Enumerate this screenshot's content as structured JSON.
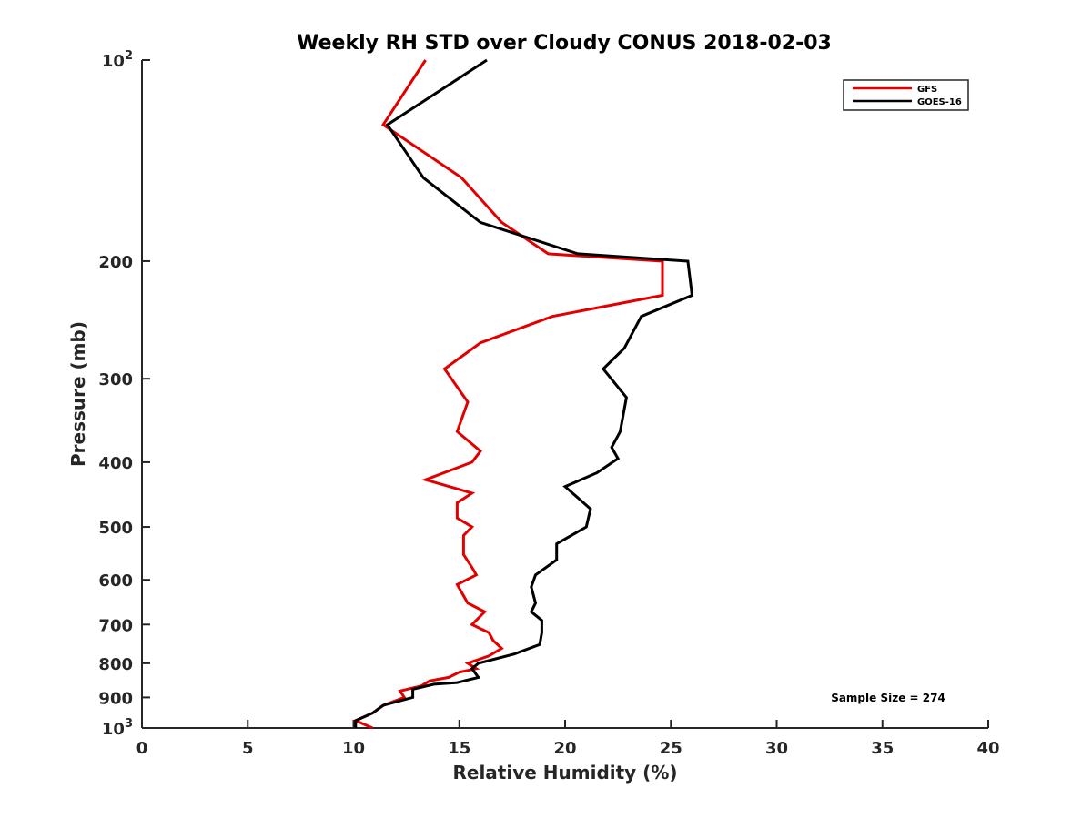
{
  "chart_data": {
    "type": "line",
    "title": "Weekly RH STD over Cloudy CONUS 2018-02-03",
    "xlabel": "Relative Humidity (%)",
    "ylabel": "Pressure (mb)",
    "xlim": [
      0,
      40
    ],
    "ylim": [
      100,
      1000
    ],
    "y_scale": "log",
    "y_reversed": true,
    "grid": false,
    "legend_position": "top-right",
    "x_ticks": [
      "0",
      "5",
      "10",
      "15",
      "20",
      "25",
      "30",
      "35",
      "40"
    ],
    "x_tick_values": [
      0,
      5,
      10,
      15,
      20,
      25,
      30,
      35,
      40
    ],
    "y_ticks": [
      {
        "value": 100,
        "label": "10",
        "sup": "2"
      },
      {
        "value": 200,
        "label": "200",
        "sup": ""
      },
      {
        "value": 300,
        "label": "300",
        "sup": ""
      },
      {
        "value": 400,
        "label": "400",
        "sup": ""
      },
      {
        "value": 500,
        "label": "500",
        "sup": ""
      },
      {
        "value": 600,
        "label": "600",
        "sup": ""
      },
      {
        "value": 700,
        "label": "700",
        "sup": ""
      },
      {
        "value": 800,
        "label": "800",
        "sup": ""
      },
      {
        "value": 900,
        "label": "900",
        "sup": ""
      },
      {
        "value": 1000,
        "label": "10",
        "sup": "3"
      }
    ],
    "annotation": "Sample Size = 274",
    "series": [
      {
        "name": "GFS",
        "color": "#e00000",
        "points": [
          [
            13.4,
            100
          ],
          [
            11.4,
            125
          ],
          [
            15.1,
            150
          ],
          [
            17,
            175
          ],
          [
            19.2,
            195
          ],
          [
            24.6,
            200
          ],
          [
            24.6,
            225
          ],
          [
            19.4,
            242
          ],
          [
            16,
            265
          ],
          [
            14.3,
            290
          ],
          [
            15.4,
            325
          ],
          [
            14.9,
            360
          ],
          [
            16,
            385
          ],
          [
            15.6,
            400
          ],
          [
            13.4,
            425
          ],
          [
            15.6,
            445
          ],
          [
            14.9,
            460
          ],
          [
            14.9,
            485
          ],
          [
            15.6,
            500
          ],
          [
            15.2,
            515
          ],
          [
            15.2,
            550
          ],
          [
            15.6,
            575
          ],
          [
            15.8,
            590
          ],
          [
            14.9,
            610
          ],
          [
            15.4,
            650
          ],
          [
            16.2,
            670
          ],
          [
            15.6,
            700
          ],
          [
            16.4,
            720
          ],
          [
            16.6,
            740
          ],
          [
            17,
            760
          ],
          [
            16.4,
            780
          ],
          [
            15.4,
            800
          ],
          [
            15.8,
            815
          ],
          [
            15,
            825
          ],
          [
            14.5,
            840
          ],
          [
            13.6,
            850
          ],
          [
            13.2,
            865
          ],
          [
            12.2,
            880
          ],
          [
            12.4,
            900
          ],
          [
            11.4,
            925
          ],
          [
            10.9,
            950
          ],
          [
            10.1,
            975
          ],
          [
            10.9,
            1000
          ]
        ]
      },
      {
        "name": "GOES-16",
        "color": "#000000",
        "points": [
          [
            16.3,
            100
          ],
          [
            11.6,
            125
          ],
          [
            13.3,
            150
          ],
          [
            16,
            175
          ],
          [
            20.6,
            195
          ],
          [
            25.8,
            200
          ],
          [
            26,
            225
          ],
          [
            23.6,
            242
          ],
          [
            22.8,
            270
          ],
          [
            21.8,
            290
          ],
          [
            22.9,
            320
          ],
          [
            22.6,
            360
          ],
          [
            22.2,
            380
          ],
          [
            22.5,
            395
          ],
          [
            21.5,
            415
          ],
          [
            20,
            435
          ],
          [
            21.2,
            470
          ],
          [
            21,
            500
          ],
          [
            19.6,
            530
          ],
          [
            19.6,
            560
          ],
          [
            18.6,
            590
          ],
          [
            18.4,
            615
          ],
          [
            18.6,
            650
          ],
          [
            18.4,
            670
          ],
          [
            18.9,
            690
          ],
          [
            18.9,
            720
          ],
          [
            18.8,
            750
          ],
          [
            17.6,
            775
          ],
          [
            15.9,
            800
          ],
          [
            15.6,
            815
          ],
          [
            15.9,
            840
          ],
          [
            14.9,
            855
          ],
          [
            13.8,
            860
          ],
          [
            12.8,
            875
          ],
          [
            12.8,
            900
          ],
          [
            11.4,
            925
          ],
          [
            10.9,
            950
          ],
          [
            10.1,
            975
          ],
          [
            10.1,
            1000
          ]
        ]
      }
    ]
  }
}
